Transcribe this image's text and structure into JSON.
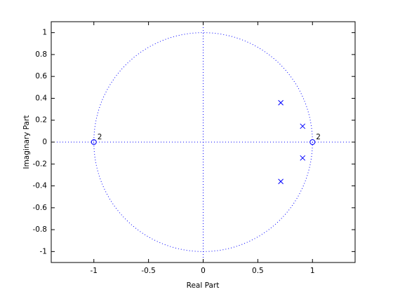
{
  "chart_data": {
    "type": "pole-zero",
    "xlabel": "Real Part",
    "ylabel": "Imaginary Part",
    "xlim": [
      -1.39,
      1.39
    ],
    "ylim": [
      -1.1,
      1.1
    ],
    "xticks": [
      -1,
      -0.5,
      0,
      0.5,
      1
    ],
    "yticks": [
      -1,
      -0.8,
      -0.6,
      -0.4,
      -0.2,
      0,
      0.2,
      0.4,
      0.6,
      0.8,
      1
    ],
    "unit_circle": true,
    "color": "#0000ff",
    "series": [
      {
        "marker": "o",
        "x": [
          -1,
          1
        ],
        "y": [
          0,
          0
        ],
        "multiplicity": [
          2,
          2
        ]
      },
      {
        "marker": "x",
        "x": [
          0.71,
          0.91,
          0.91,
          0.71
        ],
        "y": [
          0.36,
          0.145,
          -0.145,
          -0.36
        ]
      }
    ]
  }
}
